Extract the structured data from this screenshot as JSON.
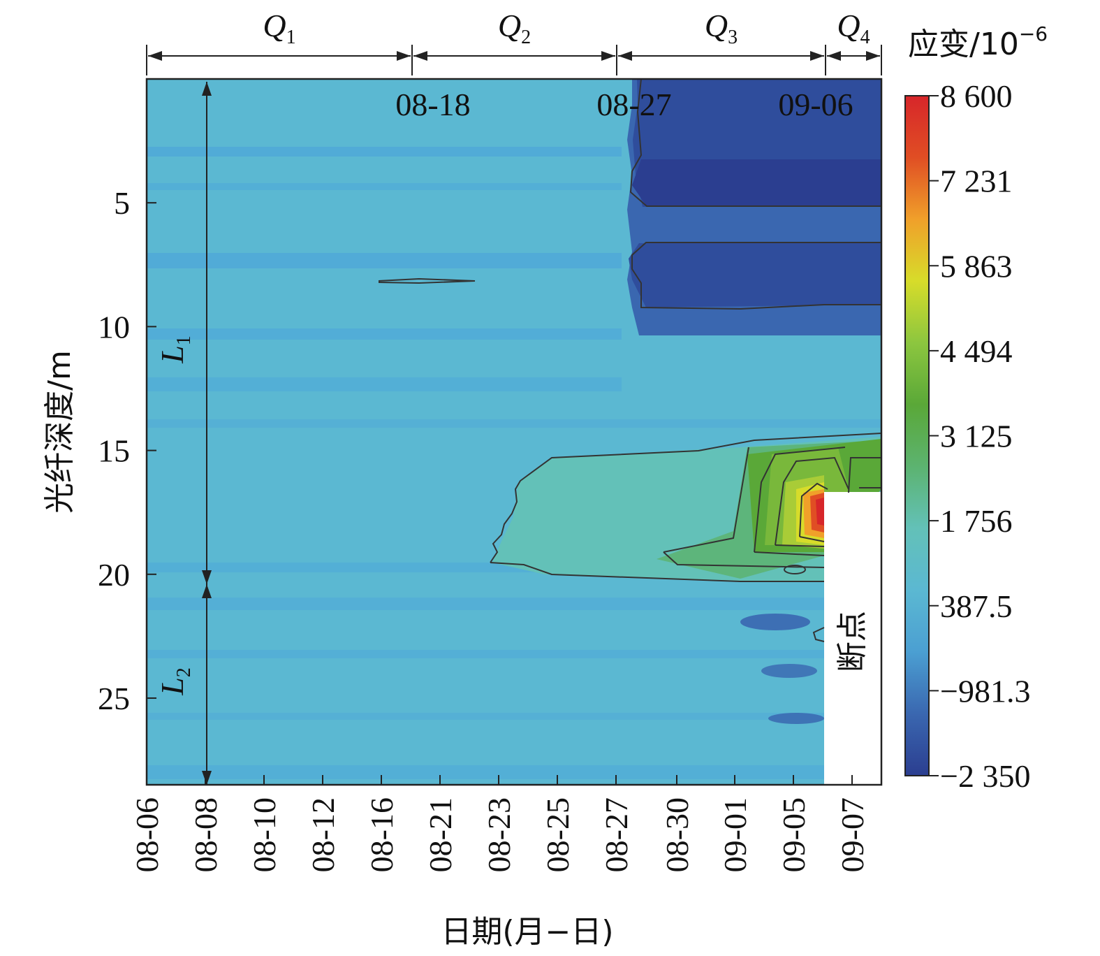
{
  "chart_data": {
    "type": "heatmap",
    "xlabel": "日期(月−日)",
    "ylabel": "光纤深度/m",
    "colorbar_title": "应变/10",
    "colorbar_title_sup": "−6",
    "colorbar": {
      "labels": [
        "8 600",
        "7 231",
        "5 863",
        "4 494",
        "3 125",
        "1 756",
        "387.5",
        "−981.3",
        "−2 350"
      ],
      "min": -2350,
      "max": 8600,
      "colors": [
        "#2b3e90",
        "#3a67b0",
        "#4b9fd2",
        "#5bb8d2",
        "#63c1b8",
        "#5cb370",
        "#5aa838",
        "#8cc63f",
        "#d7dc2a",
        "#f0a02a",
        "#e04e24",
        "#d7262a"
      ]
    },
    "x_ticks": [
      "08-06",
      "08-08",
      "08-10",
      "08-12",
      "08-16",
      "08-21",
      "08-23",
      "08-25",
      "08-27",
      "08-30",
      "09-01",
      "09-05",
      "09-07"
    ],
    "y_ticks": [
      5,
      10,
      15,
      20,
      25
    ],
    "y_range": [
      0,
      28.5
    ],
    "top_dates": [
      "08-18",
      "08-27",
      "09-06"
    ],
    "periods": [
      {
        "name": "Q",
        "sub": "1",
        "start": "08-06",
        "end": "08-18"
      },
      {
        "name": "Q",
        "sub": "2",
        "start": "08-18",
        "end": "08-27"
      },
      {
        "name": "Q",
        "sub": "3",
        "start": "08-27",
        "end": "09-06"
      },
      {
        "name": "Q",
        "sub": "4",
        "start": "09-06",
        "end": "09-08"
      }
    ],
    "layers": [
      {
        "name": "L",
        "sub": "1",
        "depth_range": [
          0,
          20.4
        ]
      },
      {
        "name": "L",
        "sub": "2",
        "depth_range": [
          20.4,
          28.5
        ]
      }
    ],
    "annotations": {
      "break_label": "断点"
    }
  }
}
